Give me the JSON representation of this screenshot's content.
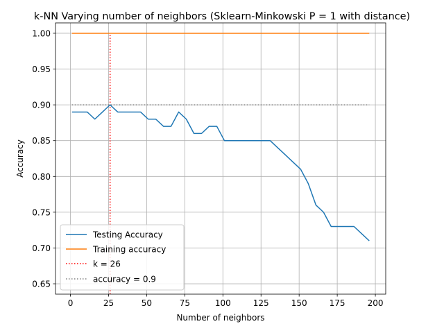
{
  "chart_data": {
    "type": "line",
    "title": "k-NN Varying number of neighbors (Sklearn-Minkowski P = 1 with distance)",
    "xlabel": "Number of neighbors",
    "ylabel": "Accuracy",
    "xlim": [
      -9.8,
      206.8
    ],
    "ylim": [
      0.6355,
      1.0145
    ],
    "xticks": [
      0,
      25,
      50,
      75,
      100,
      125,
      150,
      175,
      200
    ],
    "yticks": [
      0.65,
      0.7,
      0.75,
      0.8,
      0.85,
      0.9,
      0.95,
      1.0
    ],
    "xtick_labels": [
      "0",
      "25",
      "50",
      "75",
      "100",
      "125",
      "150",
      "175",
      "200"
    ],
    "ytick_labels": [
      "0.65",
      "0.70",
      "0.75",
      "0.80",
      "0.85",
      "0.90",
      "0.95",
      "1.00"
    ],
    "grid": true,
    "legend_position": "lower-left",
    "series": [
      {
        "name": "Testing Accuracy",
        "color": "#1f77b4",
        "style": "solid",
        "x": [
          1,
          6,
          11,
          16,
          21,
          26,
          31,
          36,
          41,
          46,
          51,
          56,
          61,
          66,
          71,
          76,
          81,
          86,
          91,
          96,
          101,
          106,
          111,
          116,
          121,
          126,
          131,
          136,
          141,
          146,
          151,
          156,
          161,
          166,
          171,
          176,
          181,
          186,
          191,
          196
        ],
        "y": [
          0.89,
          0.89,
          0.89,
          0.88,
          0.89,
          0.9,
          0.89,
          0.89,
          0.89,
          0.89,
          0.88,
          0.88,
          0.87,
          0.87,
          0.89,
          0.88,
          0.86,
          0.86,
          0.87,
          0.87,
          0.85,
          0.85,
          0.85,
          0.85,
          0.85,
          0.85,
          0.85,
          0.84,
          0.83,
          0.82,
          0.81,
          0.79,
          0.76,
          0.75,
          0.73,
          0.73,
          0.73,
          0.73,
          0.72,
          0.71
        ]
      },
      {
        "name": "Training accuracy",
        "color": "#ff7f0e",
        "style": "solid",
        "x": [
          1,
          196
        ],
        "y": [
          1.0,
          1.0
        ]
      }
    ],
    "reference_lines": [
      {
        "name": "k = 26",
        "color": "#ff0000",
        "style": "dotted",
        "orientation": "vertical",
        "x": 26,
        "y_from": 0.6355,
        "y_to": 1.0
      },
      {
        "name": "accuracy = 0.9",
        "color": "#808080",
        "style": "dotted",
        "orientation": "horizontal",
        "y": 0.9,
        "x_from": 1,
        "x_to": 196
      }
    ]
  }
}
